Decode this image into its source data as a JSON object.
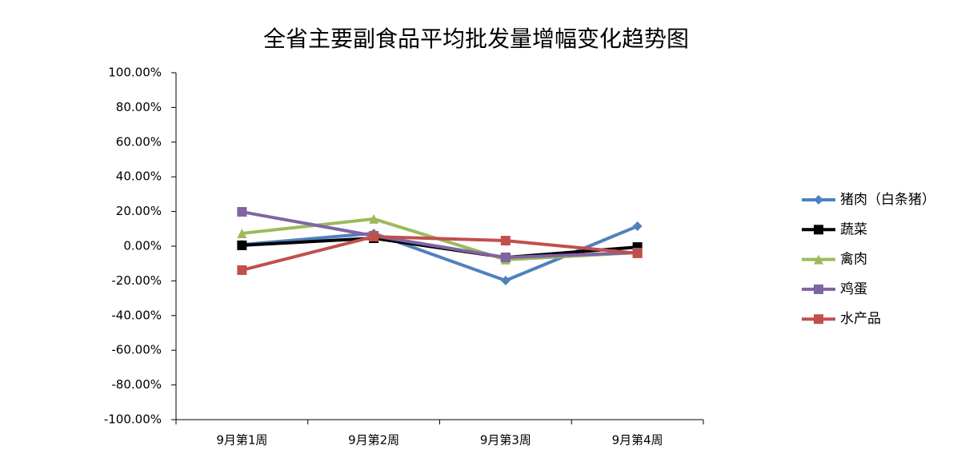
{
  "chart_data": {
    "type": "line",
    "title": "全省主要副食品平均批发量增幅变化趋势图",
    "categories": [
      "9月第1周",
      "9月第2周",
      "9月第3周",
      "9月第4周"
    ],
    "series": [
      {
        "name": "猪肉（白条猪）",
        "color": "#4f81bd",
        "marker": "diamond",
        "values": [
          0.9,
          7.4,
          -19.8,
          11.5
        ]
      },
      {
        "name": "蔬菜",
        "color": "#000000",
        "marker": "square",
        "values": [
          0.5,
          4.6,
          -6.5,
          -0.5
        ]
      },
      {
        "name": "禽肉",
        "color": "#9bbb59",
        "marker": "triangle",
        "values": [
          7.4,
          15.7,
          -7.8,
          -3.7
        ]
      },
      {
        "name": "鸡蛋",
        "color": "#8064a2",
        "marker": "square",
        "values": [
          19.8,
          6.0,
          -6.5,
          -3.7
        ]
      },
      {
        "name": "水产品",
        "color": "#c0504d",
        "marker": "square",
        "values": [
          -13.8,
          5.5,
          3.2,
          -4.1
        ]
      }
    ],
    "ylim": [
      -100,
      100
    ],
    "yticks": [
      {
        "value": 100,
        "label": "100.00%"
      },
      {
        "value": 80,
        "label": "80.00%"
      },
      {
        "value": 60,
        "label": "60.00%"
      },
      {
        "value": 40,
        "label": "40.00%"
      },
      {
        "value": 20,
        "label": "20.00%"
      },
      {
        "value": 0,
        "label": "0.00%"
      },
      {
        "value": -20,
        "label": "-20.00%"
      },
      {
        "value": -40,
        "label": "-40.00%"
      },
      {
        "value": -60,
        "label": "-60.00%"
      },
      {
        "value": -80,
        "label": "-80.00%"
      },
      {
        "value": -100,
        "label": "-100.00%"
      }
    ],
    "grid": false,
    "legend": "right"
  }
}
